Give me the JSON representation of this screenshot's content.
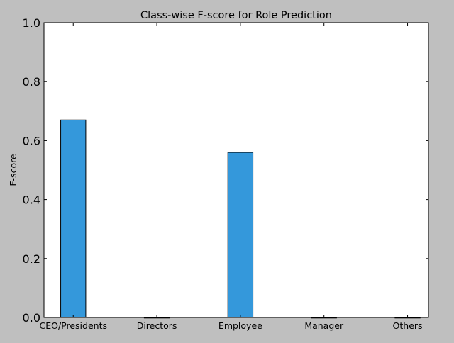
{
  "chart_data": {
    "type": "bar",
    "title": "Class-wise F-score for Role Prediction",
    "xlabel": "",
    "ylabel": "F-score",
    "categories": [
      "CEO/Presidents",
      "Directors",
      "Employee",
      "Manager",
      "Others"
    ],
    "values": [
      0.67,
      0.0,
      0.56,
      0.0,
      0.0
    ],
    "ylim": [
      0,
      1.0
    ],
    "yticks": [
      "0.0",
      "0.2",
      "0.4",
      "0.6",
      "0.8",
      "1.0"
    ],
    "bar_color": "#3498db",
    "grid": false,
    "legend": false
  }
}
